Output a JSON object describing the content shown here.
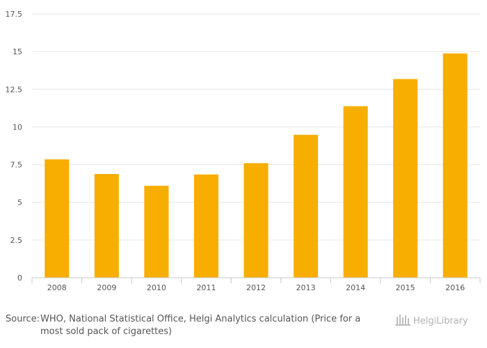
{
  "chart_data": {
    "type": "bar",
    "categories": [
      "2008",
      "2009",
      "2010",
      "2011",
      "2012",
      "2013",
      "2014",
      "2015",
      "2016"
    ],
    "values": [
      7.85,
      6.88,
      6.1,
      6.85,
      7.6,
      9.48,
      11.38,
      13.18,
      14.88
    ],
    "ylim": [
      0,
      17.5
    ],
    "yticks": [
      0,
      2.5,
      5,
      7.5,
      10,
      12.5,
      15,
      17.5
    ],
    "ytick_labels": [
      "0",
      "2.5",
      "5",
      "7.5",
      "10",
      "12.5",
      "15",
      "17.5"
    ],
    "bar_color": "#f7ae00",
    "grid": true,
    "title": "",
    "xlabel": "",
    "ylabel": ""
  },
  "footer": {
    "source_label": "Source:",
    "source_text": "WHO, National Statistical Office, Helgi Analytics calculation (Price for a most sold pack of cigarettes)"
  },
  "logo": {
    "text": "HelgiLibrary"
  }
}
